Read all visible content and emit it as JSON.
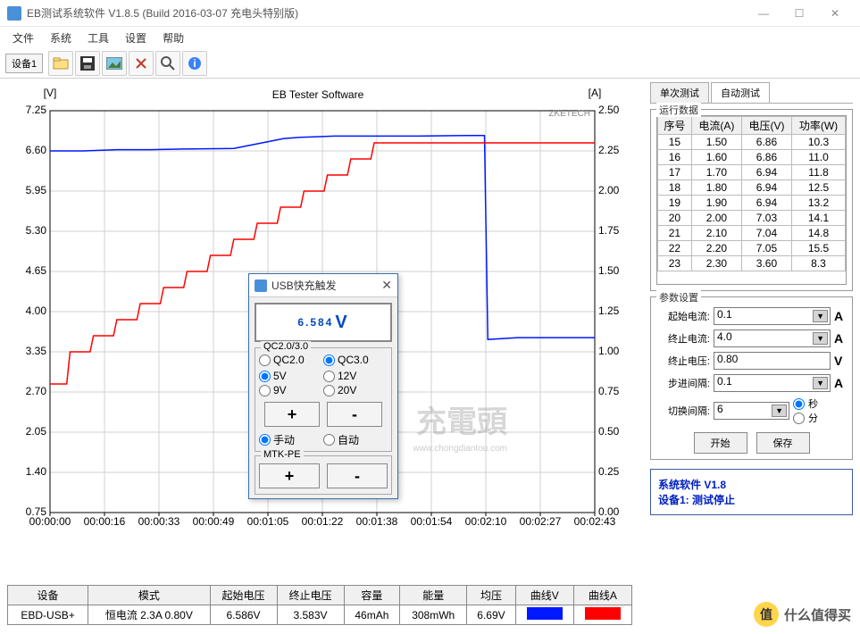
{
  "window": {
    "title": "EB测试系统软件 V1.8.5 (Build 2016-03-07 充电头特别版)"
  },
  "menu": [
    "文件",
    "系统",
    "工具",
    "设置",
    "帮助"
  ],
  "toolbar": {
    "device": "设备1"
  },
  "chart": {
    "title": "EB Tester Software",
    "left_label": "[V]",
    "right_label": "[A]",
    "watermark": "充電頭",
    "watermark_sub": "www.chongdiantou.com",
    "brand": "ZKETECH",
    "y_left": {
      "min": 0.75,
      "max": 7.25,
      "ticks": [
        0.75,
        1.4,
        2.05,
        2.7,
        3.35,
        4.0,
        4.65,
        5.3,
        5.95,
        6.6,
        7.25
      ]
    },
    "y_right": {
      "min": 0.0,
      "max": 2.5,
      "ticks": [
        0.0,
        0.25,
        0.5,
        0.75,
        1.0,
        1.25,
        1.5,
        1.75,
        2.0,
        2.25,
        2.5
      ]
    },
    "x_ticks": [
      "00:00:00",
      "00:00:16",
      "00:00:33",
      "00:00:49",
      "00:01:05",
      "00:01:22",
      "00:01:38",
      "00:01:54",
      "00:02:10",
      "00:02:27",
      "00:02:43"
    ],
    "x_range": 163,
    "blue_color": "#0018ff",
    "red_color": "#ff0000",
    "grid_color": "#d0d0d0",
    "blue_series": [
      [
        0,
        6.6
      ],
      [
        10,
        6.6
      ],
      [
        20,
        6.62
      ],
      [
        30,
        6.62
      ],
      [
        40,
        6.63
      ],
      [
        55,
        6.64
      ],
      [
        70,
        6.8
      ],
      [
        75,
        6.82
      ],
      [
        80,
        6.83
      ],
      [
        85,
        6.84
      ],
      [
        95,
        6.84
      ],
      [
        110,
        6.84
      ],
      [
        125,
        6.85
      ],
      [
        130,
        6.85
      ],
      [
        131,
        3.55
      ],
      [
        140,
        3.58
      ],
      [
        163,
        3.58
      ]
    ],
    "red_series": [
      [
        0,
        0.8
      ],
      [
        5,
        0.8
      ],
      [
        6,
        1.0
      ],
      [
        12,
        1.0
      ],
      [
        13,
        1.1
      ],
      [
        19,
        1.1
      ],
      [
        20,
        1.2
      ],
      [
        26,
        1.2
      ],
      [
        27,
        1.3
      ],
      [
        33,
        1.3
      ],
      [
        34,
        1.4
      ],
      [
        40,
        1.4
      ],
      [
        41,
        1.5
      ],
      [
        47,
        1.5
      ],
      [
        48,
        1.6
      ],
      [
        54,
        1.6
      ],
      [
        55,
        1.7
      ],
      [
        61,
        1.7
      ],
      [
        62,
        1.8
      ],
      [
        68,
        1.8
      ],
      [
        69,
        1.9
      ],
      [
        75,
        1.9
      ],
      [
        76,
        2.0
      ],
      [
        82,
        2.0
      ],
      [
        83,
        2.1
      ],
      [
        89,
        2.1
      ],
      [
        90,
        2.2
      ],
      [
        96,
        2.2
      ],
      [
        97,
        2.3
      ],
      [
        130,
        2.3
      ],
      [
        131,
        2.3
      ],
      [
        163,
        2.3
      ]
    ]
  },
  "popup": {
    "title": "USB快充触发",
    "display": "6.584",
    "unit": "V",
    "qc_group": "QC2.0/3.0",
    "qc_opts": [
      "QC2.0",
      "QC3.0"
    ],
    "qc_sel": "QC3.0",
    "volt_opts": [
      "5V",
      "12V",
      "9V",
      "20V"
    ],
    "volt_sel": "5V",
    "mode_opts": [
      "手动",
      "自动"
    ],
    "mode_sel": "手动",
    "mtk": "MTK-PE"
  },
  "tabs": {
    "single": "单次测试",
    "auto": "自动测试",
    "active": "auto"
  },
  "runtable": {
    "legend": "运行数据",
    "headers": [
      "序号",
      "电流(A)",
      "电压(V)",
      "功率(W)"
    ],
    "rows": [
      [
        "15",
        "1.50",
        "6.86",
        "10.3"
      ],
      [
        "16",
        "1.60",
        "6.86",
        "11.0"
      ],
      [
        "17",
        "1.70",
        "6.94",
        "11.8"
      ],
      [
        "18",
        "1.80",
        "6.94",
        "12.5"
      ],
      [
        "19",
        "1.90",
        "6.94",
        "13.2"
      ],
      [
        "20",
        "2.00",
        "7.03",
        "14.1"
      ],
      [
        "21",
        "2.10",
        "7.04",
        "14.8"
      ],
      [
        "22",
        "2.20",
        "7.05",
        "15.5"
      ],
      [
        "23",
        "2.30",
        "3.60",
        "8.3"
      ]
    ]
  },
  "params": {
    "legend": "参数设置",
    "rows": [
      {
        "label": "起始电流:",
        "value": "0.1",
        "unit": "A",
        "drop": true
      },
      {
        "label": "终止电流:",
        "value": "4.0",
        "unit": "A",
        "drop": true
      },
      {
        "label": "终止电压:",
        "value": "0.80",
        "unit": "V",
        "drop": false
      },
      {
        "label": "步进间隔:",
        "value": "0.1",
        "unit": "A",
        "drop": true
      },
      {
        "label": "切换间隔:",
        "value": "6",
        "unit": "",
        "drop": true
      }
    ],
    "time_unit": {
      "sec": "秒",
      "min": "分",
      "sel": "sec"
    },
    "start": "开始",
    "save": "保存"
  },
  "status": {
    "l1": "系统软件 V1.8",
    "l2": "设备1: 测试停止"
  },
  "summary": {
    "headers": [
      "设备",
      "模式",
      "起始电压",
      "终止电压",
      "容量",
      "能量",
      "均压",
      "曲线V",
      "曲线A"
    ],
    "row": [
      "EBD-USB+",
      "恒电流 2.3A 0.80V",
      "6.586V",
      "3.583V",
      "46mAh",
      "308mWh",
      "6.69V"
    ],
    "colV": "#0018ff",
    "colA": "#ff0000"
  },
  "corner": {
    "char": "值",
    "text": "什么值得买"
  }
}
